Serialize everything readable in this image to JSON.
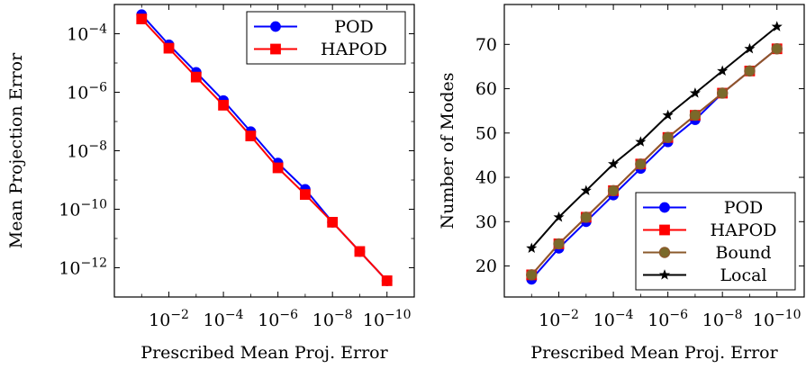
{
  "chart_data": [
    {
      "type": "line",
      "xscale": "log",
      "yscale": "log",
      "xaxis_reversed": true,
      "xlabel": "Prescribed Mean Proj. Error",
      "ylabel": "Mean Projection Error",
      "xlim": [
        1e-11,
        1
      ],
      "ylim": [
        1e-13,
        0.001
      ],
      "xticks": [
        {
          "exp": -2,
          "base": "10",
          "sup": "−2"
        },
        {
          "exp": -4,
          "base": "10",
          "sup": "−4"
        },
        {
          "exp": -6,
          "base": "10",
          "sup": "−6"
        },
        {
          "exp": -8,
          "base": "10",
          "sup": "−8"
        },
        {
          "exp": -10,
          "base": "10",
          "sup": "−10"
        }
      ],
      "yticks": [
        {
          "exp": -4,
          "base": "10",
          "sup": "−4"
        },
        {
          "exp": -6,
          "base": "10",
          "sup": "−6"
        },
        {
          "exp": -8,
          "base": "10",
          "sup": "−8"
        },
        {
          "exp": -10,
          "base": "10",
          "sup": "−10"
        },
        {
          "exp": -12,
          "base": "10",
          "sup": "−12"
        }
      ],
      "x": [
        0.1,
        0.01,
        0.001,
        0.0001,
        1e-05,
        1e-06,
        1e-07,
        1e-08,
        1e-09,
        1e-10
      ],
      "legend_position": "top-right",
      "series": [
        {
          "name": "POD",
          "color": "#0000ff",
          "marker": "circle",
          "values": [
            0.00045,
            4.2e-05,
            4.8e-06,
            5.2e-07,
            4.5e-08,
            3.8e-09,
            4.8e-10,
            3.6e-11,
            3.6e-12,
            3.6e-13
          ]
        },
        {
          "name": "HAPOD",
          "color": "#ff0000",
          "marker": "square",
          "values": [
            0.00032,
            3.2e-05,
            3.3e-06,
            3.6e-07,
            3.2e-08,
            2.6e-09,
            3.2e-10,
            3.6e-11,
            3.6e-12,
            3.6e-13
          ]
        }
      ]
    },
    {
      "type": "line",
      "xscale": "log",
      "yscale": "linear",
      "xaxis_reversed": true,
      "xlabel": "Prescribed Mean Proj. Error",
      "ylabel": "Number of Modes",
      "xlim": [
        1e-11,
        1
      ],
      "ylim": [
        13,
        79
      ],
      "xticks": [
        {
          "exp": -2,
          "base": "10",
          "sup": "−2"
        },
        {
          "exp": -4,
          "base": "10",
          "sup": "−4"
        },
        {
          "exp": -6,
          "base": "10",
          "sup": "−6"
        },
        {
          "exp": -8,
          "base": "10",
          "sup": "−8"
        },
        {
          "exp": -10,
          "base": "10",
          "sup": "−10"
        }
      ],
      "yticks": [
        20,
        30,
        40,
        50,
        60,
        70
      ],
      "x": [
        0.1,
        0.01,
        0.001,
        0.0001,
        1e-05,
        1e-06,
        1e-07,
        1e-08,
        1e-09,
        1e-10
      ],
      "legend_position": "bottom-right",
      "series": [
        {
          "name": "POD",
          "color": "#0000ff",
          "marker": "circle",
          "values": [
            17,
            24,
            30,
            36,
            42,
            48,
            53,
            59,
            64,
            69
          ]
        },
        {
          "name": "HAPOD",
          "color": "#ff0000",
          "marker": "square",
          "values": [
            18,
            25,
            31,
            37,
            43,
            49,
            54,
            59,
            64,
            69
          ]
        },
        {
          "name": "Bound",
          "color": "#8b5a2b",
          "marker": "circle-dark",
          "values": [
            18,
            25,
            31,
            37,
            43,
            49,
            54,
            59,
            64,
            69
          ]
        },
        {
          "name": "Local",
          "color": "#000000",
          "marker": "star",
          "values": [
            24,
            31,
            37,
            43,
            48,
            54,
            59,
            64,
            69,
            74
          ]
        }
      ]
    }
  ]
}
